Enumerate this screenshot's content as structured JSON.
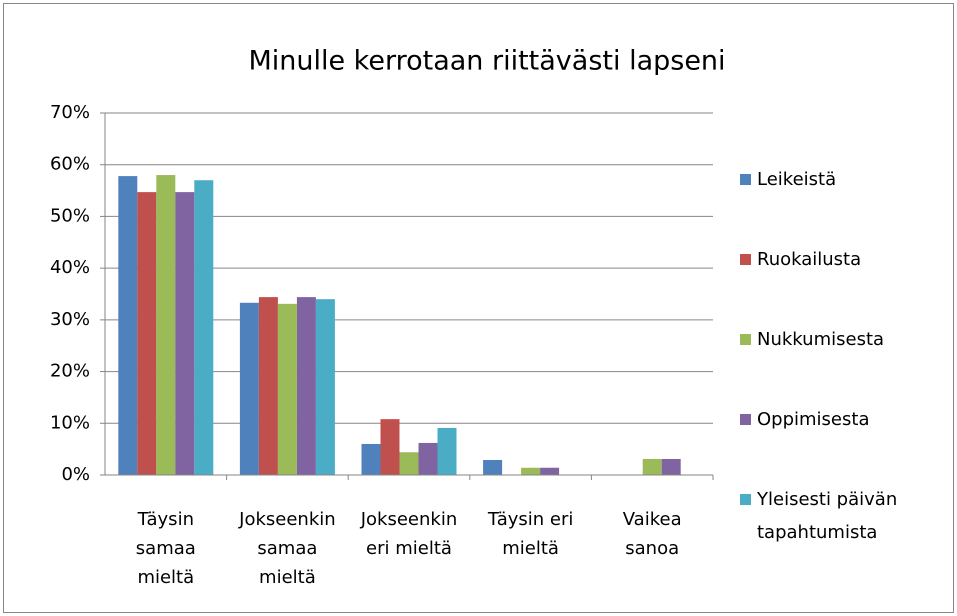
{
  "chart_data": {
    "type": "bar",
    "title": "Minulle kerrotaan riittävästi  lapseni",
    "categories": [
      [
        "Täysin",
        "samaa",
        "mieltä"
      ],
      [
        "Jokseenkin",
        "samaa",
        "mieltä"
      ],
      [
        "Jokseenkin",
        "eri mieltä"
      ],
      [
        "Täysin eri",
        "mieltä"
      ],
      [
        "Vaikea",
        "sanoa"
      ]
    ],
    "series": [
      {
        "name": "Leikeistä",
        "color": "#4f81bd",
        "values": [
          57.8,
          33.3,
          6,
          2.9,
          0
        ]
      },
      {
        "name": "Ruokailusta",
        "color": "#c0504d",
        "values": [
          54.7,
          34.4,
          10.8,
          0,
          0
        ]
      },
      {
        "name": "Nukkumisesta",
        "color": "#9bbb59",
        "values": [
          58,
          33.1,
          4.4,
          1.4,
          3.1
        ]
      },
      {
        "name": "Oppimisesta",
        "color": "#8064a2",
        "values": [
          54.7,
          34.4,
          6.2,
          1.4,
          3.1
        ]
      },
      {
        "name": "Yleisesti päivän tapahtumista",
        "color": "#4bacc6",
        "values": [
          57,
          34,
          9.1,
          0,
          0
        ]
      }
    ],
    "ylim": [
      0,
      70
    ],
    "yticks": [
      {
        "value": 0,
        "label": "0%"
      },
      {
        "value": 10,
        "label": "10%"
      },
      {
        "value": 20,
        "label": "20%"
      },
      {
        "value": 30,
        "label": "30%"
      },
      {
        "value": 40,
        "label": "40%"
      },
      {
        "value": 50,
        "label": "50%"
      },
      {
        "value": 60,
        "label": "60%"
      },
      {
        "value": 70,
        "label": "70%"
      }
    ],
    "grid": true,
    "legend": "right"
  }
}
